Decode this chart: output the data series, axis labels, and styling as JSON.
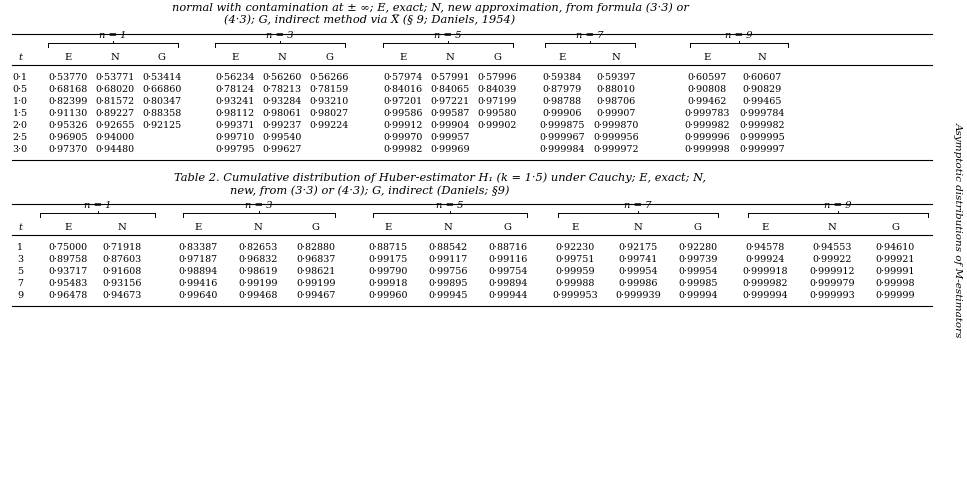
{
  "caption1": [
    "normal with contamination at ± ∞; E, exact; N, new approximation, from formula (3·3) or",
    "(4·3); G, indirect method via X̅ (§ 9; Daniels, 1954)"
  ],
  "caption2_line1_roman": "Table 2. ",
  "caption2_line1_italic": "Cumulative distribution of Huber-estimator H",
  "caption2_line1_sub": "1",
  "caption2_line1_rest": " (k = 1·5) under Cauchy; E, ",
  "caption2_italic2": "exact",
  "caption2_line1_end": "; N,",
  "caption2_line2": "new, from (3·3) or (4·3); G, indirect (Daniels; §9)",
  "table1_t": [
    "0·1",
    "0·5",
    "1·0",
    "1·5",
    "2·0",
    "2·5",
    "3·0"
  ],
  "table1_n1_E": [
    "0·53770",
    "0·68168",
    "0·82399",
    "0·91130",
    "0·95326",
    "0·96905",
    "0·97370"
  ],
  "table1_n1_N": [
    "0·53771",
    "0·68020",
    "0·81572",
    "0·89227",
    "0·92655",
    "0·94000",
    "0·94480"
  ],
  "table1_n1_G": [
    "0·53414",
    "0·66860",
    "0·80347",
    "0·88358",
    "0·92125",
    "",
    ""
  ],
  "table1_n3_E": [
    "0·56234",
    "0·78124",
    "0·93241",
    "0·98112",
    "0·99371",
    "0·99710",
    "0·99795"
  ],
  "table1_n3_N": [
    "0·56260",
    "0·78213",
    "0·93284",
    "0·98061",
    "0·99237",
    "0·99540",
    "0·99627"
  ],
  "table1_n3_G": [
    "0·56266",
    "0·78159",
    "0·93210",
    "0·98027",
    "0·99224",
    "",
    ""
  ],
  "table1_n5_E": [
    "0·57974",
    "0·84016",
    "0·97201",
    "0·99586",
    "0·99912",
    "0·99970",
    "0·99982"
  ],
  "table1_n5_N": [
    "0·57991",
    "0·84065",
    "0·97221",
    "0·99587",
    "0·99904",
    "0·99957",
    "0·99969"
  ],
  "table1_n5_G": [
    "0·57996",
    "0·84039",
    "0·97199",
    "0·99580",
    "0·99902",
    "",
    ""
  ],
  "table1_n7_E": [
    "0·59384",
    "0·87979",
    "0·98788",
    "0·99906",
    "0·999875",
    "0·999967",
    "0·999984"
  ],
  "table1_n7_N": [
    "0·59397",
    "0·88010",
    "0·98706",
    "0·99907",
    "0·999870",
    "0·999956",
    "0·999972"
  ],
  "table1_n9_E": [
    "0·60597",
    "0·90808",
    "0·99462",
    "0·999783",
    "0·999982",
    "0·999996",
    "0·999998"
  ],
  "table1_n9_N": [
    "0·60607",
    "0·90829",
    "0·99465",
    "0·999784",
    "0·999982",
    "0·999995",
    "0·999997"
  ],
  "table2_t": [
    "1",
    "3",
    "5",
    "7",
    "9"
  ],
  "table2_n1_E": [
    "0·75000",
    "0·89758",
    "0·93717",
    "0·95483",
    "0·96478"
  ],
  "table2_n1_N": [
    "0·71918",
    "0·87603",
    "0·91608",
    "0·93156",
    "0·94673"
  ],
  "table2_n3_E": [
    "0·83387",
    "0·97187",
    "0·98894",
    "0·99416",
    "0·99640"
  ],
  "table2_n3_N": [
    "0·82653",
    "0·96832",
    "0·98619",
    "0·99199",
    "0·99468"
  ],
  "table2_n3_G": [
    "0·82880",
    "0·96837",
    "0·98621",
    "0·99199",
    "0·99467"
  ],
  "table2_n5_E": [
    "0·88715",
    "0·99175",
    "0·99790",
    "0·99918",
    "0·99960"
  ],
  "table2_n5_N": [
    "0·88542",
    "0·99117",
    "0·99756",
    "0·99895",
    "0·99945"
  ],
  "table2_n5_G": [
    "0·88716",
    "0·99116",
    "0·99754",
    "0·99894",
    "0·99944"
  ],
  "table2_n7_E": [
    "0·92230",
    "0·99751",
    "0·99959",
    "0·99988",
    "0·999953"
  ],
  "table2_n7_N": [
    "0·92175",
    "0·99741",
    "0·99954",
    "0·99986",
    "0·999939"
  ],
  "table2_n7_G": [
    "0·92280",
    "0·99739",
    "0·99954",
    "0·99985",
    "0·99994"
  ],
  "table2_n9_E": [
    "0·94578",
    "0·99924",
    "0·999918",
    "0·999982",
    "0·999994"
  ],
  "table2_n9_N": [
    "0·94553",
    "0·99922",
    "0·999912",
    "0·999979",
    "0·999993"
  ],
  "table2_n9_G": [
    "0·94610",
    "0·99921",
    "0·99991",
    "0·99998",
    "0·99999"
  ],
  "side_text": "Asymptotic distributions of M-estimators"
}
